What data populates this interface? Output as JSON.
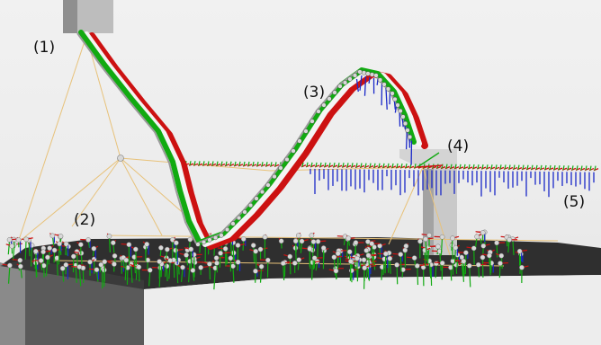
{
  "scene": {
    "background_color": "#eeeeee",
    "ground_color": "#2f2f2f",
    "block_color": "#8a8a8a",
    "colors": {
      "axis_x": "#cc1111",
      "axis_y": "#11aa11",
      "axis_z": "#1a28c8",
      "constraint_line": "#e8c27a",
      "node": "#d8d8d8"
    }
  },
  "callouts": [
    {
      "id": "1",
      "text": "(1)"
    },
    {
      "id": "2",
      "text": "(2)"
    },
    {
      "id": "3",
      "text": "(3)"
    },
    {
      "id": "4",
      "text": "(4)"
    },
    {
      "id": "5",
      "text": "(5)"
    }
  ]
}
